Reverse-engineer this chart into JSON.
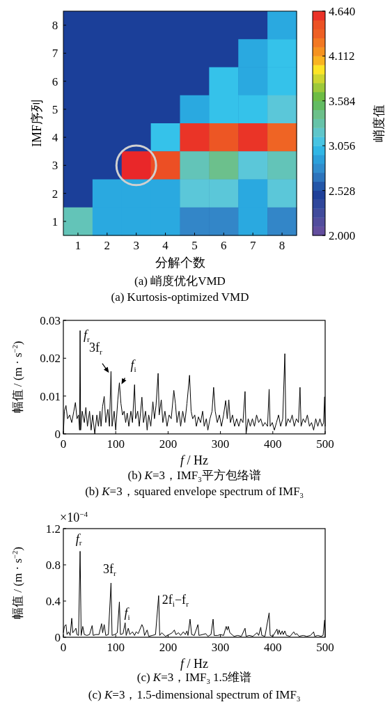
{
  "chart_data": [
    {
      "type": "heatmap",
      "xlabel": "分解个数",
      "ylabel": "IMF序列",
      "clabel": "峭度值",
      "categories": [
        "1",
        "2",
        "3",
        "4",
        "5",
        "6",
        "7",
        "8"
      ],
      "y_categories": [
        "8",
        "7",
        "6",
        "5",
        "4",
        "3",
        "2",
        "1"
      ],
      "cells": [
        [
          null,
          null,
          null,
          null,
          null,
          null,
          null,
          2.95
        ],
        [
          null,
          null,
          null,
          null,
          null,
          null,
          2.95,
          3.05
        ],
        [
          null,
          null,
          null,
          null,
          null,
          3.05,
          2.95,
          3.05
        ],
        [
          null,
          null,
          null,
          null,
          2.95,
          3.05,
          3.05,
          3.17
        ],
        [
          null,
          null,
          null,
          3.05,
          4.58,
          4.45,
          4.58,
          4.35
        ],
        [
          null,
          null,
          4.62,
          4.5,
          3.27,
          3.42,
          3.17,
          3.27
        ],
        [
          null,
          2.95,
          2.95,
          2.95,
          3.17,
          3.17,
          2.95,
          3.17
        ],
        [
          3.27,
          2.95,
          2.95,
          2.95,
          2.75,
          2.75,
          2.95,
          2.75
        ]
      ],
      "clim": [
        2.0,
        4.64
      ],
      "cticks": [
        {
          "value": 2.0,
          "label": "2.000"
        },
        {
          "value": 2.528,
          "label": "2.528"
        },
        {
          "value": 3.056,
          "label": "3.056"
        },
        {
          "value": 3.584,
          "label": "3.584"
        },
        {
          "value": 4.112,
          "label": "4.112"
        },
        {
          "value": 4.64,
          "label": "4.640"
        }
      ],
      "annotations": [
        "(a)  峭度优化VMD",
        "(a)  Kurtosis-optimized VMD"
      ]
    },
    {
      "type": "line",
      "xlabel": "*f* / Hz",
      "ylabel": "幅值 / (m · s$^{−2}$)",
      "xlim": [
        0,
        500
      ],
      "ylim": [
        0,
        0.03
      ],
      "xticks": [
        0,
        100,
        200,
        300,
        400,
        500
      ],
      "yticks": [
        0,
        0.01,
        0.02,
        0.03
      ],
      "series": [
        {
          "color": "#000000",
          "x": [
            0,
            2,
            5,
            8,
            12,
            16,
            20,
            23,
            26,
            29,
            31,
            32,
            33,
            36,
            40,
            43,
            46,
            50,
            53,
            56,
            60,
            64,
            67,
            70,
            72,
            75,
            78,
            81,
            85,
            88,
            91,
            93,
            97,
            100,
            104,
            107,
            110,
            113,
            116,
            119,
            122,
            125,
            129,
            132,
            136,
            138,
            142,
            145,
            150,
            153,
            157,
            160,
            163,
            167,
            171,
            174,
            177,
            181,
            183,
            187,
            190,
            194,
            198,
            202,
            206,
            211,
            214,
            217,
            221,
            224,
            228,
            232,
            236,
            241,
            244,
            247,
            251,
            254,
            258,
            262,
            266,
            269,
            273,
            276,
            280,
            284,
            287,
            290,
            294,
            298,
            302,
            306,
            310,
            313,
            316,
            319,
            323,
            327,
            331,
            335,
            339,
            343,
            347,
            349,
            353,
            357,
            361,
            365,
            369,
            373,
            377,
            381,
            385,
            390,
            393,
            395,
            399,
            403,
            407,
            411,
            415,
            419,
            423,
            425,
            429,
            433,
            437,
            441,
            445,
            449,
            452,
            454,
            458,
            462,
            466,
            470,
            474,
            478,
            482,
            486,
            490,
            494,
            497,
            499,
            500
          ],
          "values": [
            0,
            0.006,
            0.0075,
            0.004,
            0.005,
            0.003,
            0.006,
            0.0083,
            0.004,
            0.005,
            0.001,
            0.0273,
            0.001,
            0.006,
            0.003,
            0.007,
            0.002,
            0.006,
            0.001,
            0.005,
            0,
            0.005,
            0.002,
            0.006,
            0.002,
            0.0073,
            0.0099,
            0.003,
            0.0065,
            0.002,
            0.0165,
            0.002,
            0.006,
            0.001,
            0.009,
            0.0135,
            0.008,
            0.005,
            0.006,
            0.003,
            0.0055,
            0.002,
            0.006,
            0.003,
            0.013,
            0.004,
            0.006,
            0.002,
            0.0097,
            0.003,
            0.006,
            0.001,
            0.005,
            0.002,
            0.0085,
            0.004,
            0.0075,
            0.016,
            0.005,
            0.009,
            0.003,
            0.006,
            0.002,
            0.005,
            0.004,
            0.0115,
            0.008,
            0.003,
            0.006,
            0.002,
            0.006,
            0.003,
            0.008,
            0.0155,
            0.006,
            0.004,
            0.005,
            0.002,
            0.0045,
            0.003,
            0.006,
            0.002,
            0.004,
            0.001,
            0.004,
            0.006,
            0.0123,
            0.006,
            0.003,
            0.005,
            0.002,
            0.005,
            0.0088,
            0.004,
            0.009,
            0.003,
            0.005,
            0.002,
            0.004,
            0.002,
            0.004,
            0.003,
            0.0112,
            0,
            0.004,
            0.002,
            0.004,
            0.002,
            0.005,
            0.003,
            0.004,
            0.002,
            0.003,
            0.002,
            0.0118,
            0.002,
            0.003,
            0.001,
            0.003,
            0.005,
            0.002,
            0.004,
            0.0212,
            0.002,
            0.004,
            0.003,
            0.005,
            0.002,
            0.004,
            0.003,
            0.0123,
            0.002,
            0.004,
            0.003,
            0.005,
            0.002,
            0.003,
            0.001,
            0.004,
            0.002,
            0.004,
            0.002,
            0.003,
            0.0098,
            0.002
          ]
        }
      ],
      "annotations": [
        {
          "text": "*f*$_{r}$",
          "x": 32,
          "y": 0.0273
        },
        {
          "text": "3f$_{r}$",
          "x": 91,
          "y": 0.0165
        },
        {
          "text": "*f*$_{i}$",
          "x": 107,
          "y": 0.0135
        },
        "(b)  *K*=3，IMF$_{3}$平方包络谱",
        "(b)  *K*=3，squared envelope spectrum of IMF$_{3}$"
      ]
    },
    {
      "type": "line",
      "xlabel": "*f* / Hz",
      "ylabel": "幅值 / (m · s$^{−2}$)",
      "xlim": [
        0,
        500
      ],
      "ylim": [
        0,
        1.2
      ],
      "xticks": [
        0,
        100,
        200,
        300,
        400,
        500
      ],
      "yticks": [
        0,
        0.4,
        0.8,
        1.2
      ],
      "series": [
        {
          "color": "#000000",
          "x": [
            0,
            2,
            5,
            7,
            10,
            13,
            16,
            18,
            22,
            24,
            26,
            29,
            32,
            34,
            37,
            40,
            45,
            50,
            55,
            57,
            62,
            68,
            73,
            75,
            78,
            81,
            86,
            91,
            93,
            98,
            103,
            107,
            109,
            114,
            118,
            120,
            124,
            127,
            132,
            136,
            139,
            143,
            150,
            153,
            155,
            160,
            163,
            170,
            176,
            182,
            184,
            188,
            195,
            202,
            208,
            212,
            215,
            220,
            224,
            229,
            233,
            236,
            238,
            242,
            245,
            250,
            257,
            259,
            266,
            272,
            276,
            282,
            286,
            288,
            295,
            300,
            306,
            311,
            313,
            315,
            318,
            322,
            326,
            333,
            340,
            347,
            349,
            355,
            362,
            370,
            373,
            377,
            379,
            385,
            393,
            395,
            400,
            408,
            410,
            412,
            415,
            418,
            420,
            423,
            426,
            433,
            440,
            443,
            446,
            450,
            458,
            465,
            472,
            478,
            480,
            486,
            492,
            496,
            499,
            500
          ],
          "values": [
            0.05,
            0.12,
            0.14,
            0.03,
            0.06,
            0.02,
            0.21,
            0.05,
            0.08,
            0.1,
            0.03,
            0.02,
            0.95,
            0.02,
            0.12,
            0.03,
            0.02,
            0.03,
            0.13,
            0.02,
            0.03,
            0.03,
            0.15,
            0.05,
            0.14,
            0.02,
            0.03,
            0.6,
            0.02,
            0.03,
            0.05,
            0.39,
            0.03,
            0.04,
            0.16,
            0.02,
            0.1,
            0.03,
            0.06,
            0.02,
            0.06,
            0.04,
            0.14,
            0.1,
            0.02,
            0.08,
            0.01,
            0.02,
            0.03,
            0.46,
            0.02,
            0.05,
            0.01,
            0.03,
            0.05,
            0.08,
            0.03,
            0.05,
            0.02,
            0.06,
            0.03,
            0.07,
            0.02,
            0.2,
            0.03,
            0.02,
            0.14,
            0.02,
            0.03,
            0.04,
            0.01,
            0.03,
            0.2,
            0.02,
            0.02,
            0.03,
            0.02,
            0.12,
            0.08,
            0.12,
            0.05,
            0.03,
            0.01,
            0.02,
            0.01,
            0.1,
            0.01,
            0.02,
            0.01,
            0.05,
            0.02,
            0.11,
            0.02,
            0.01,
            0.27,
            0.02,
            0.01,
            0.09,
            0.03,
            0.08,
            0.03,
            0.07,
            0.03,
            0.07,
            0.02,
            0.01,
            0.06,
            0.03,
            0.04,
            0.01,
            0.02,
            0.01,
            0.02,
            0.06,
            0.01,
            0.02,
            0.01,
            0.02,
            0.19,
            0.03
          ]
        }
      ],
      "annotations": [
        "×10$^{−4}$",
        {
          "text": "*f*$_{r}$",
          "x": 32,
          "y": 0.95
        },
        {
          "text": "3f$_{r}$",
          "x": 91,
          "y": 0.6
        },
        {
          "text": "*f*$_{i}$",
          "x": 107,
          "y": 0.39
        },
        {
          "text": "2f$_{i}$−f$_{r}$",
          "x": 182,
          "y": 0.46
        },
        "(c)  *K*=3，IMF$_{3}$ 1.5维谱",
        "(c)  *K*=3，1.5-dimensional spectrum of IMF$_{3}$"
      ]
    }
  ]
}
